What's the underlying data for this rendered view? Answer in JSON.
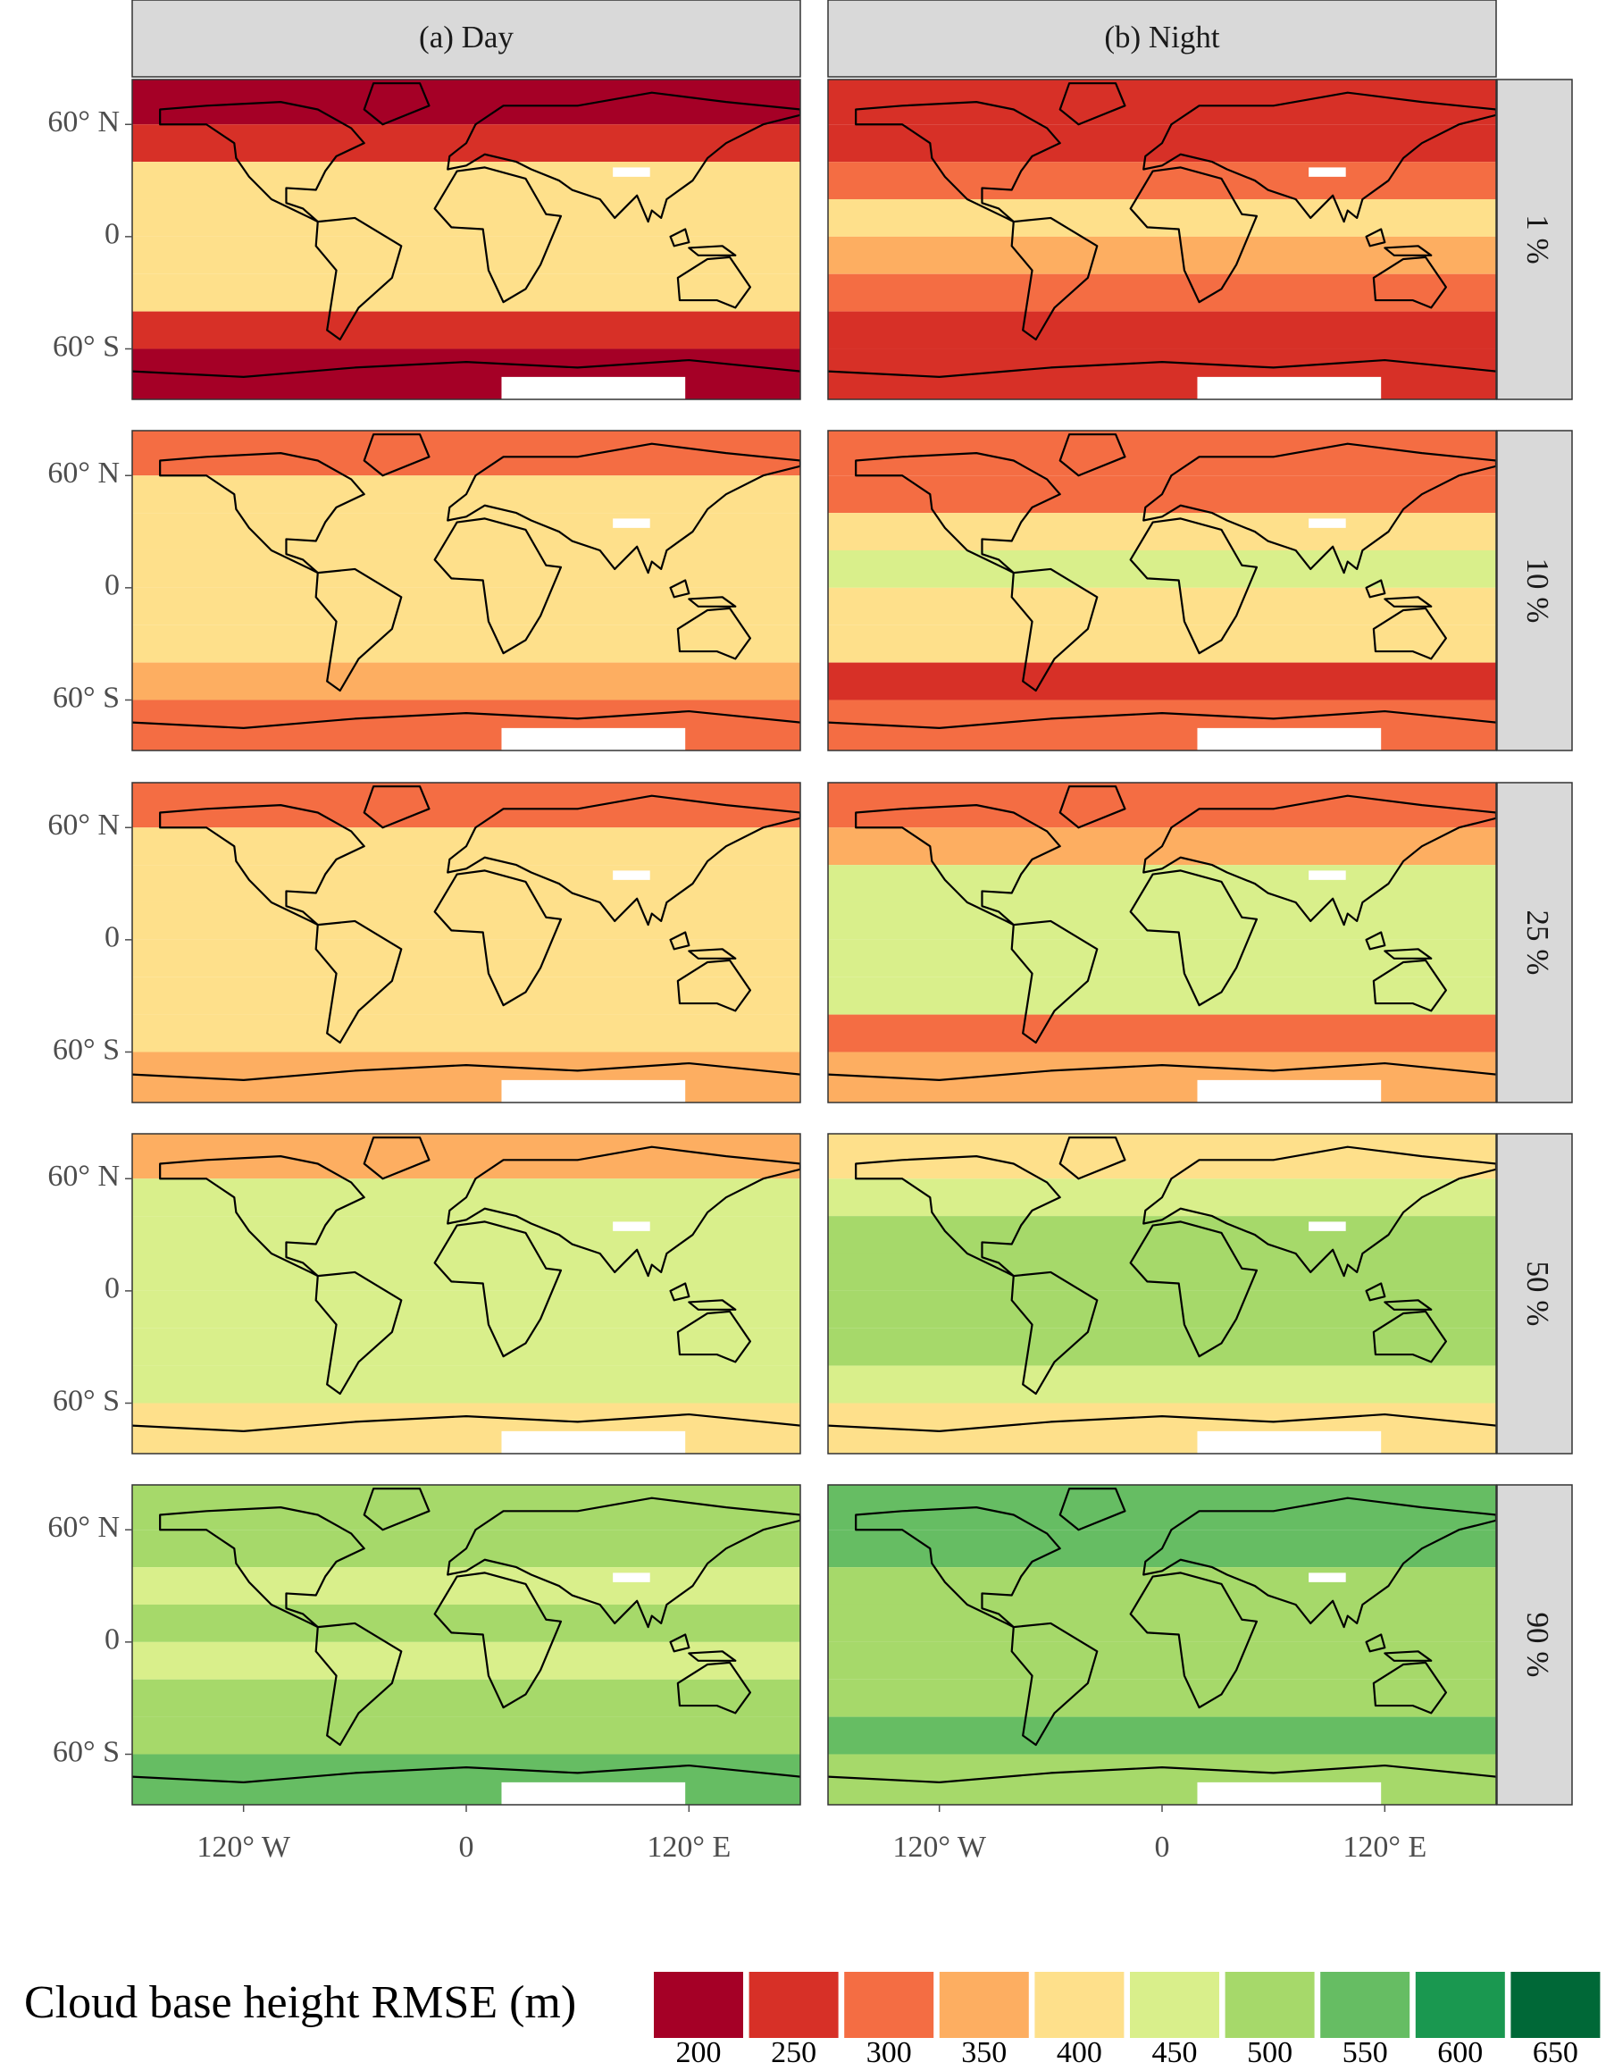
{
  "chart_data": {
    "type": "raster-map",
    "columns": [
      "(a) Day",
      "(b) Night"
    ],
    "rows": [
      "1 %",
      "10 %",
      "25 %",
      "50 %",
      "90 %"
    ],
    "xlim": [
      -180,
      180
    ],
    "ylim": [
      -87,
      84
    ],
    "xticks": [
      {
        "value": -120,
        "label": "120°  W"
      },
      0,
      {
        "value": 120,
        "label": "120°  E"
      }
    ],
    "yticks": [
      {
        "value": 60,
        "label": "60°  N"
      },
      0,
      {
        "value": -60,
        "label": "60°  S"
      }
    ],
    "lat_edges": [
      84,
      60,
      40,
      20,
      0,
      -20,
      -40,
      -60,
      -87
    ],
    "values": [
      [
        [
          200,
          250,
          400,
          400,
          400,
          400,
          250,
          200
        ],
        [
          300,
          400,
          400,
          400,
          400,
          400,
          350,
          300
        ],
        [
          300,
          400,
          400,
          400,
          400,
          400,
          400,
          350
        ],
        [
          350,
          450,
          450,
          450,
          450,
          450,
          450,
          400
        ],
        [
          500,
          500,
          450,
          500,
          450,
          500,
          500,
          550
        ]
      ],
      [
        [
          250,
          250,
          300,
          400,
          350,
          300,
          250,
          250
        ],
        [
          300,
          300,
          400,
          450,
          400,
          400,
          250,
          300
        ],
        [
          300,
          350,
          450,
          450,
          450,
          450,
          300,
          350
        ],
        [
          400,
          450,
          500,
          500,
          500,
          500,
          450,
          400
        ],
        [
          550,
          550,
          500,
          500,
          500,
          500,
          550,
          500
        ]
      ]
    ],
    "legend": {
      "title": "Cloud base height RMSE (m)",
      "breaks": [
        200,
        250,
        300,
        350,
        400,
        450,
        500,
        550,
        600,
        650
      ],
      "colors": [
        "#a50026",
        "#d73027",
        "#f46d43",
        "#fdae61",
        "#fee08b",
        "#d9ef8b",
        "#a6d96a",
        "#66bd63",
        "#1a9850",
        "#006837"
      ]
    }
  }
}
